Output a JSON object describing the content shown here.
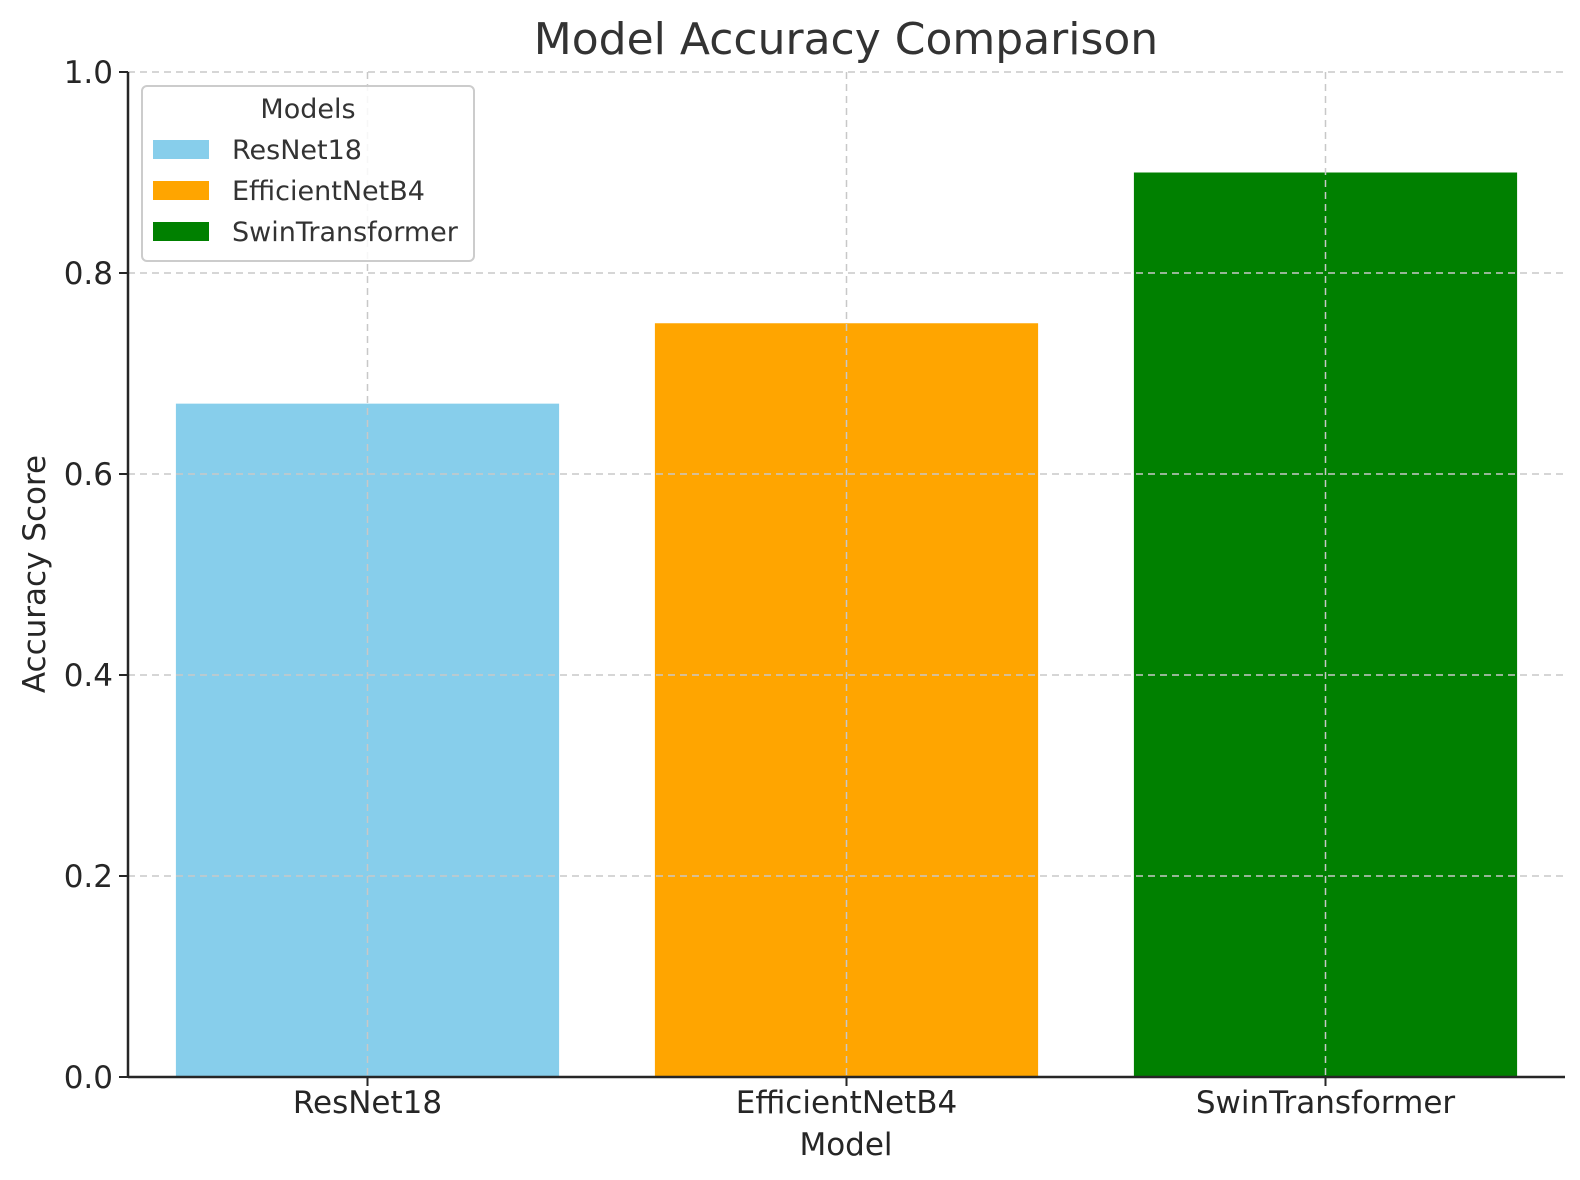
{
  "chart_data": {
    "type": "bar",
    "title": "Model Accuracy Comparison",
    "xlabel": "Model",
    "ylabel": "Accuracy Score",
    "categories": [
      "ResNet18",
      "EfficientNetB4",
      "SwinTransformer"
    ],
    "values": [
      0.67,
      0.75,
      0.9
    ],
    "colors": [
      "#87ceeb",
      "#ffa500",
      "#008000"
    ],
    "ylim": [
      0,
      1.0
    ],
    "yticks": [
      "0.0",
      "0.2",
      "0.4",
      "0.6",
      "0.8",
      "1.0"
    ],
    "grid": true,
    "legend": {
      "title": "Models",
      "placement": "top-left",
      "entries": [
        "ResNet18",
        "EfficientNetB4",
        "SwinTransformer"
      ]
    }
  }
}
